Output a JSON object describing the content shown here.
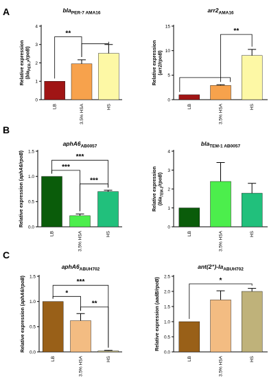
{
  "chart_data": [
    {
      "type": "bar",
      "panel": "A",
      "title": {
        "main": "bla",
        "sub": "PER-7 AMA16",
        "italic_main": true
      },
      "ylabel": {
        "parts": [
          [
            "Relative expression",
            "n"
          ],
          [
            "(",
            ""
          ],
          [
            "bla",
            "i"
          ],
          [
            "PER-7",
            "i-sub"
          ],
          [
            "/",
            "i"
          ],
          [
            "rpoB",
            "i"
          ],
          [
            ")",
            ""
          ]
        ]
      },
      "categories": [
        "LB",
        "3.5% HSA",
        "HS"
      ],
      "values": [
        1.0,
        1.95,
        2.52
      ],
      "errors": [
        0,
        0.22,
        0.48
      ],
      "colors": [
        "#a01515",
        "#f7a24c",
        "#fdf8a5"
      ],
      "ylim": [
        0,
        4
      ],
      "yticks": [
        "0",
        "1",
        "2",
        "3",
        "4"
      ],
      "significance": [
        {
          "from": 0,
          "to": 1,
          "label": "**",
          "level": 3.42
        },
        {
          "from": 1,
          "to": 2,
          "label": "",
          "level": 3.04
        }
      ]
    },
    {
      "type": "bar",
      "panel": "",
      "title": {
        "main": "arr2",
        "sub": "AMA16",
        "italic_main": true
      },
      "ylabel": {
        "parts": [
          [
            "Relative expression",
            "n"
          ],
          [
            "(",
            ""
          ],
          [
            "arr2",
            "i"
          ],
          [
            "/",
            "i"
          ],
          [
            "rpoB",
            "i"
          ],
          [
            ")",
            ""
          ]
        ]
      },
      "categories": [
        "LB",
        "3.5% HSA",
        "HS"
      ],
      "values": [
        1.0,
        2.9,
        9.0
      ],
      "errors": [
        0,
        0.15,
        1.25
      ],
      "colors": [
        "#a01515",
        "#f7a24c",
        "#fdf8a5"
      ],
      "ylim": [
        0,
        15
      ],
      "yticks": [
        "0",
        "5",
        "10",
        "15"
      ],
      "significance": [
        {
          "from": 1,
          "to": 2,
          "label": "**",
          "level": 13.3
        },
        {
          "from": 0,
          "to": 1,
          "label": "",
          "level": 4.5,
          "extend_right": true
        }
      ]
    },
    {
      "type": "bar",
      "panel": "B",
      "title": {
        "main": "aphA6",
        "sub": "AB0057",
        "italic_main": true
      },
      "ylabel": {
        "parts": [
          [
            "Relative expression (",
            ""
          ],
          [
            "aphA6",
            "i"
          ],
          [
            "/",
            "i"
          ],
          [
            "rpoB",
            "i"
          ],
          [
            ")",
            ""
          ]
        ]
      },
      "categories": [
        "LB",
        "3.5% HSA",
        "HS"
      ],
      "values": [
        1.0,
        0.22,
        0.7
      ],
      "errors": [
        0,
        0.035,
        0.025
      ],
      "colors": [
        "#0a5c0a",
        "#4cee4c",
        "#21c07c"
      ],
      "ylim": [
        0,
        1.5
      ],
      "yticks": [
        "0.0",
        "0.5",
        "1.0",
        "1.5"
      ],
      "significance": [
        {
          "from": 0,
          "to": 2,
          "label": "***",
          "level": 1.32
        },
        {
          "from": 0,
          "to": 1,
          "label": "***",
          "level": 1.12
        },
        {
          "from": 1,
          "to": 2,
          "label": "***",
          "level": 0.85
        }
      ]
    },
    {
      "type": "bar",
      "panel": "",
      "title": {
        "main": "bla",
        "sub": "TEM-1 AB0057",
        "italic_main": true
      },
      "ylabel": {
        "parts": [
          [
            "Relative expression",
            "n"
          ],
          [
            "(",
            ""
          ],
          [
            "bla",
            "i"
          ],
          [
            "TEM-1",
            "i-sub"
          ],
          [
            "/",
            "i"
          ],
          [
            "rpoB",
            "i"
          ],
          [
            ")",
            ""
          ]
        ]
      },
      "categories": [
        "LB",
        "3.5% HSA",
        "HS"
      ],
      "values": [
        1.0,
        2.4,
        1.78
      ],
      "errors": [
        0,
        1.0,
        0.52
      ],
      "colors": [
        "#0a5c0a",
        "#4cee4c",
        "#21c07c"
      ],
      "ylim": [
        0,
        4
      ],
      "yticks": [
        "0",
        "1",
        "2",
        "3",
        "4"
      ],
      "significance": []
    },
    {
      "type": "bar",
      "panel": "C",
      "title": {
        "main": "aphA6",
        "sub": "ABUH702",
        "italic_main": true
      },
      "ylabel": {
        "parts": [
          [
            "Relative expression (",
            ""
          ],
          [
            "aphA6",
            "i"
          ],
          [
            "/",
            "i"
          ],
          [
            "rpoB",
            "i"
          ],
          [
            ")",
            ""
          ]
        ]
      },
      "categories": [
        "LB",
        "3.5% HSA",
        "HS"
      ],
      "values": [
        1.0,
        0.62,
        0.02
      ],
      "errors": [
        0,
        0.14,
        0.01
      ],
      "colors": [
        "#996018",
        "#f3bc82",
        "#d8cc92"
      ],
      "ylim": [
        0,
        1.5
      ],
      "yticks": [
        "0.0",
        "0.5",
        "1.0",
        "1.5"
      ],
      "significance": [
        {
          "from": 0,
          "to": 2,
          "label": "***",
          "level": 1.32
        },
        {
          "from": 0,
          "to": 1,
          "label": "*",
          "level": 1.1
        },
        {
          "from": 1,
          "to": 2,
          "label": "**",
          "level": 0.89
        }
      ]
    },
    {
      "type": "bar",
      "panel": "",
      "title": {
        "main": "ant(2ʺ)-Ia",
        "sub": "ABUH702",
        "italic_main": true
      },
      "ylabel": {
        "parts": [
          [
            "Relative expression (",
            ""
          ],
          [
            "aadB",
            "i"
          ],
          [
            "/",
            "i"
          ],
          [
            "rpoB",
            "i"
          ],
          [
            ")",
            ""
          ]
        ]
      },
      "categories": [
        "LB",
        "3.5% HSA",
        "HS"
      ],
      "values": [
        1.0,
        1.72,
        2.0
      ],
      "errors": [
        0,
        0.3,
        0.1
      ],
      "colors": [
        "#996018",
        "#f3bc82",
        "#bfb27a"
      ],
      "ylim": [
        0,
        2.5
      ],
      "yticks": [
        "0.0",
        "0.5",
        "1.0",
        "1.5",
        "2.0",
        "2.5"
      ],
      "significance": [
        {
          "from": 0,
          "to": 2,
          "label": "*",
          "level": 2.25
        }
      ]
    }
  ]
}
